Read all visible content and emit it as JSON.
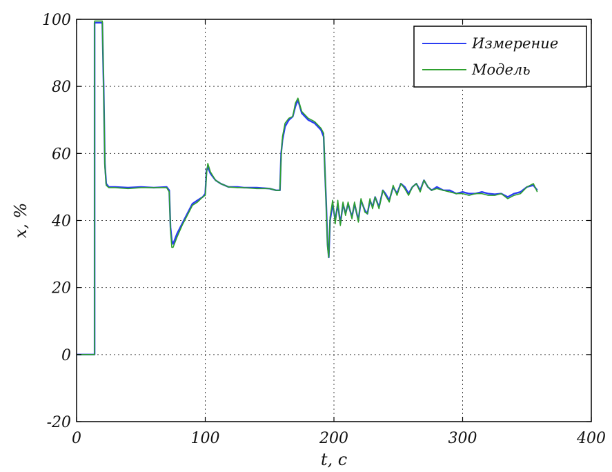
{
  "chart_data": {
    "type": "line",
    "title": "",
    "xlabel": "t, c",
    "ylabel": "x, %",
    "xlim": [
      0,
      400
    ],
    "ylim": [
      -20,
      100
    ],
    "x_ticks": [
      0,
      100,
      200,
      300,
      400
    ],
    "y_ticks": [
      -20,
      0,
      20,
      40,
      60,
      80,
      100
    ],
    "grid": true,
    "legend_position": "top-right",
    "series": [
      {
        "name": "Измерение",
        "color": "#2b3df2",
        "points": [
          [
            0,
            0
          ],
          [
            14,
            0
          ],
          [
            14,
            99
          ],
          [
            20,
            99
          ],
          [
            21,
            80
          ],
          [
            22,
            57
          ],
          [
            23,
            51
          ],
          [
            25,
            50
          ],
          [
            30,
            50
          ],
          [
            40,
            49.8
          ],
          [
            50,
            50
          ],
          [
            60,
            49.8
          ],
          [
            70,
            50
          ],
          [
            72,
            49
          ],
          [
            73,
            38
          ],
          [
            74,
            34
          ],
          [
            75,
            33
          ],
          [
            78,
            36
          ],
          [
            82,
            39
          ],
          [
            86,
            42
          ],
          [
            90,
            45
          ],
          [
            94,
            46
          ],
          [
            98,
            47
          ],
          [
            100,
            48
          ],
          [
            101,
            55
          ],
          [
            102,
            56
          ],
          [
            104,
            54
          ],
          [
            108,
            52
          ],
          [
            112,
            51
          ],
          [
            118,
            50
          ],
          [
            125,
            50
          ],
          [
            130,
            49.8
          ],
          [
            140,
            49.8
          ],
          [
            150,
            49.5
          ],
          [
            155,
            49
          ],
          [
            158,
            49
          ],
          [
            159,
            60
          ],
          [
            160,
            64
          ],
          [
            162,
            68
          ],
          [
            165,
            70
          ],
          [
            168,
            71
          ],
          [
            170,
            74
          ],
          [
            172,
            76
          ],
          [
            175,
            72
          ],
          [
            180,
            70
          ],
          [
            185,
            69
          ],
          [
            190,
            67
          ],
          [
            192,
            65
          ],
          [
            193,
            55
          ],
          [
            194,
            45
          ],
          [
            195,
            33
          ],
          [
            196,
            29
          ],
          [
            197,
            40
          ],
          [
            199,
            45
          ],
          [
            201,
            40
          ],
          [
            203,
            45
          ],
          [
            205,
            39
          ],
          [
            207,
            45
          ],
          [
            209,
            42
          ],
          [
            211,
            45
          ],
          [
            214,
            41
          ],
          [
            216,
            45
          ],
          [
            219,
            40
          ],
          [
            221,
            46
          ],
          [
            224,
            43
          ],
          [
            226,
            42
          ],
          [
            228,
            46
          ],
          [
            230,
            44
          ],
          [
            232,
            47
          ],
          [
            235,
            44
          ],
          [
            238,
            49
          ],
          [
            240,
            48
          ],
          [
            243,
            46
          ],
          [
            246,
            50
          ],
          [
            249,
            48
          ],
          [
            252,
            51
          ],
          [
            255,
            50
          ],
          [
            258,
            48
          ],
          [
            261,
            50
          ],
          [
            264,
            51
          ],
          [
            267,
            49
          ],
          [
            270,
            52
          ],
          [
            273,
            50
          ],
          [
            276,
            49
          ],
          [
            280,
            50
          ],
          [
            285,
            49
          ],
          [
            290,
            49
          ],
          [
            295,
            48
          ],
          [
            300,
            48.5
          ],
          [
            305,
            48
          ],
          [
            310,
            48
          ],
          [
            315,
            48.5
          ],
          [
            320,
            48
          ],
          [
            325,
            47.8
          ],
          [
            330,
            48
          ],
          [
            335,
            47
          ],
          [
            340,
            48
          ],
          [
            345,
            48.5
          ],
          [
            350,
            50
          ],
          [
            355,
            50.5
          ],
          [
            358,
            49
          ]
        ]
      },
      {
        "name": "Модель",
        "color": "#2ea02e",
        "points": [
          [
            0,
            0
          ],
          [
            14,
            0
          ],
          [
            14,
            99.5
          ],
          [
            20,
            99.5
          ],
          [
            21,
            80
          ],
          [
            22,
            56
          ],
          [
            23,
            50.5
          ],
          [
            25,
            49.8
          ],
          [
            30,
            49.8
          ],
          [
            40,
            49.5
          ],
          [
            50,
            49.8
          ],
          [
            60,
            49.8
          ],
          [
            70,
            49.8
          ],
          [
            72,
            48.5
          ],
          [
            73,
            37
          ],
          [
            74,
            32
          ],
          [
            75,
            32
          ],
          [
            78,
            35
          ],
          [
            82,
            38.5
          ],
          [
            86,
            41.5
          ],
          [
            90,
            44.5
          ],
          [
            94,
            45.5
          ],
          [
            98,
            47
          ],
          [
            100,
            47.5
          ],
          [
            101,
            54
          ],
          [
            102,
            57
          ],
          [
            104,
            54.5
          ],
          [
            108,
            52
          ],
          [
            112,
            51
          ],
          [
            118,
            50
          ],
          [
            125,
            49.8
          ],
          [
            130,
            49.8
          ],
          [
            140,
            49.5
          ],
          [
            150,
            49.5
          ],
          [
            155,
            49
          ],
          [
            158,
            49
          ],
          [
            159,
            59
          ],
          [
            160,
            65
          ],
          [
            162,
            69
          ],
          [
            165,
            70.5
          ],
          [
            168,
            71
          ],
          [
            170,
            75
          ],
          [
            172,
            76.5
          ],
          [
            175,
            72.5
          ],
          [
            180,
            70.5
          ],
          [
            185,
            69.5
          ],
          [
            190,
            67.5
          ],
          [
            192,
            66
          ],
          [
            193,
            55
          ],
          [
            194,
            44
          ],
          [
            195,
            32
          ],
          [
            196,
            29
          ],
          [
            197,
            41
          ],
          [
            199,
            46
          ],
          [
            201,
            39
          ],
          [
            203,
            46
          ],
          [
            205,
            38.5
          ],
          [
            207,
            45.5
          ],
          [
            209,
            41.5
          ],
          [
            211,
            45.5
          ],
          [
            214,
            40.5
          ],
          [
            216,
            45.5
          ],
          [
            219,
            39.5
          ],
          [
            221,
            46.5
          ],
          [
            224,
            42.5
          ],
          [
            226,
            42
          ],
          [
            228,
            46.5
          ],
          [
            230,
            43.5
          ],
          [
            232,
            47
          ],
          [
            235,
            43.5
          ],
          [
            238,
            49
          ],
          [
            240,
            47.5
          ],
          [
            243,
            45.5
          ],
          [
            246,
            50.5
          ],
          [
            249,
            47.5
          ],
          [
            252,
            51
          ],
          [
            255,
            49.5
          ],
          [
            258,
            47.5
          ],
          [
            261,
            50
          ],
          [
            264,
            51
          ],
          [
            267,
            48.5
          ],
          [
            270,
            52
          ],
          [
            273,
            50
          ],
          [
            276,
            49
          ],
          [
            280,
            49.5
          ],
          [
            285,
            49
          ],
          [
            290,
            48.5
          ],
          [
            295,
            48
          ],
          [
            300,
            48
          ],
          [
            305,
            47.5
          ],
          [
            310,
            48
          ],
          [
            315,
            48
          ],
          [
            320,
            47.5
          ],
          [
            325,
            47.5
          ],
          [
            330,
            48
          ],
          [
            335,
            46.5
          ],
          [
            340,
            47.5
          ],
          [
            345,
            48
          ],
          [
            350,
            50
          ],
          [
            355,
            51
          ],
          [
            358,
            48.5
          ]
        ]
      }
    ]
  }
}
